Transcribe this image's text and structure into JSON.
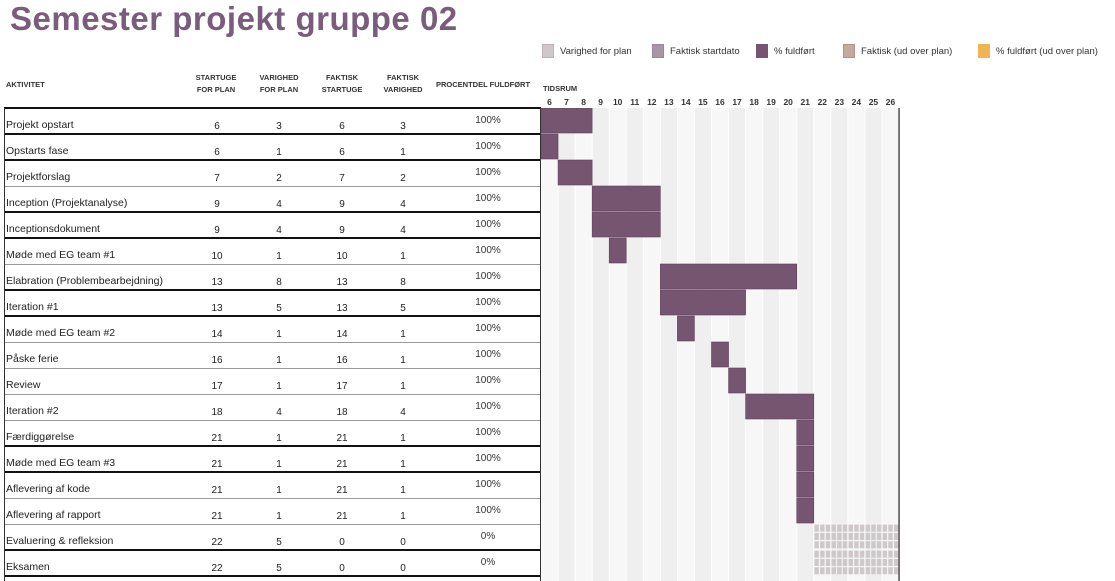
{
  "title": "Semester projekt gruppe 02",
  "legend": [
    {
      "label": "Varighed for plan",
      "swatch": "plan"
    },
    {
      "label": "Faktisk startdato",
      "swatch": "actual"
    },
    {
      "label": "% fuldført",
      "swatch": "pct"
    },
    {
      "label": "Faktisk (ud over plan)",
      "swatch": "beyond"
    },
    {
      "label": "% fuldført (ud over plan)",
      "swatch": "pctbeyond"
    }
  ],
  "headers": {
    "aktivitet": "AKTIVITET",
    "startuge_l1": "STARTUGE",
    "startuge_l2": "FOR PLAN",
    "varighed_l1": "VARIGHED",
    "varighed_l2": "FOR PLAN",
    "fstart_l1": "FAKTISK",
    "fstart_l2": "STARTUGE",
    "fvar_l1": "FAKTISK",
    "fvar_l2": "VARIGHED",
    "procent": "PROCENTDEL FULDFØRT",
    "tidsrum": "TIDSRUM"
  },
  "colors": {
    "title": "#7a5c7c",
    "bar": "#765570",
    "bar_border": "#5e4259",
    "grid_light": "#efefef",
    "grid_dark": "#e2e2e2",
    "plan_hatch": "#cfc8ca"
  },
  "chart_data": {
    "type": "gantt",
    "periods": [
      6,
      7,
      8,
      9,
      10,
      11,
      12,
      13,
      14,
      15,
      16,
      17,
      18,
      19,
      20,
      21,
      22,
      23,
      24,
      25,
      26
    ],
    "tasks": [
      {
        "name": "Projekt opstart",
        "plan_start": 6,
        "plan_duration": 3,
        "actual_start": 6,
        "actual_duration": 3,
        "percent": "100%"
      },
      {
        "name": "Opstarts fase",
        "plan_start": 6,
        "plan_duration": 1,
        "actual_start": 6,
        "actual_duration": 1,
        "percent": "100%"
      },
      {
        "name": "Projektforslag",
        "plan_start": 7,
        "plan_duration": 2,
        "actual_start": 7,
        "actual_duration": 2,
        "percent": "100%"
      },
      {
        "name": "Inception (Projektanalyse)",
        "plan_start": 9,
        "plan_duration": 4,
        "actual_start": 9,
        "actual_duration": 4,
        "percent": "100%"
      },
      {
        "name": "Inceptionsdokument",
        "plan_start": 9,
        "plan_duration": 4,
        "actual_start": 9,
        "actual_duration": 4,
        "percent": "100%"
      },
      {
        "name": "Møde med EG team #1",
        "plan_start": 10,
        "plan_duration": 1,
        "actual_start": 10,
        "actual_duration": 1,
        "percent": "100%"
      },
      {
        "name": "Elabration (Problembearbejdning)",
        "plan_start": 13,
        "plan_duration": 8,
        "actual_start": 13,
        "actual_duration": 8,
        "percent": "100%"
      },
      {
        "name": "Iteration #1",
        "plan_start": 13,
        "plan_duration": 5,
        "actual_start": 13,
        "actual_duration": 5,
        "percent": "100%"
      },
      {
        "name": "Møde med EG team #2",
        "plan_start": 14,
        "plan_duration": 1,
        "actual_start": 14,
        "actual_duration": 1,
        "percent": "100%"
      },
      {
        "name": "Påske ferie",
        "plan_start": 16,
        "plan_duration": 1,
        "actual_start": 16,
        "actual_duration": 1,
        "percent": "100%"
      },
      {
        "name": "Review",
        "plan_start": 17,
        "plan_duration": 1,
        "actual_start": 17,
        "actual_duration": 1,
        "percent": "100%"
      },
      {
        "name": "Iteration #2",
        "plan_start": 18,
        "plan_duration": 4,
        "actual_start": 18,
        "actual_duration": 4,
        "percent": "100%"
      },
      {
        "name": "Færdiggørelse",
        "plan_start": 21,
        "plan_duration": 1,
        "actual_start": 21,
        "actual_duration": 1,
        "percent": "100%"
      },
      {
        "name": "Møde med EG team #3",
        "plan_start": 21,
        "plan_duration": 1,
        "actual_start": 21,
        "actual_duration": 1,
        "percent": "100%"
      },
      {
        "name": "Aflevering af kode",
        "plan_start": 21,
        "plan_duration": 1,
        "actual_start": 21,
        "actual_duration": 1,
        "percent": "100%"
      },
      {
        "name": "Aflevering af rapport",
        "plan_start": 21,
        "plan_duration": 1,
        "actual_start": 21,
        "actual_duration": 1,
        "percent": "100%"
      },
      {
        "name": "Evaluering & refleksion",
        "plan_start": 22,
        "plan_duration": 5,
        "actual_start": 0,
        "actual_duration": 0,
        "percent": "0%"
      },
      {
        "name": "Eksamen",
        "plan_start": 22,
        "plan_duration": 5,
        "actual_start": 0,
        "actual_duration": 0,
        "percent": "0%"
      }
    ]
  }
}
